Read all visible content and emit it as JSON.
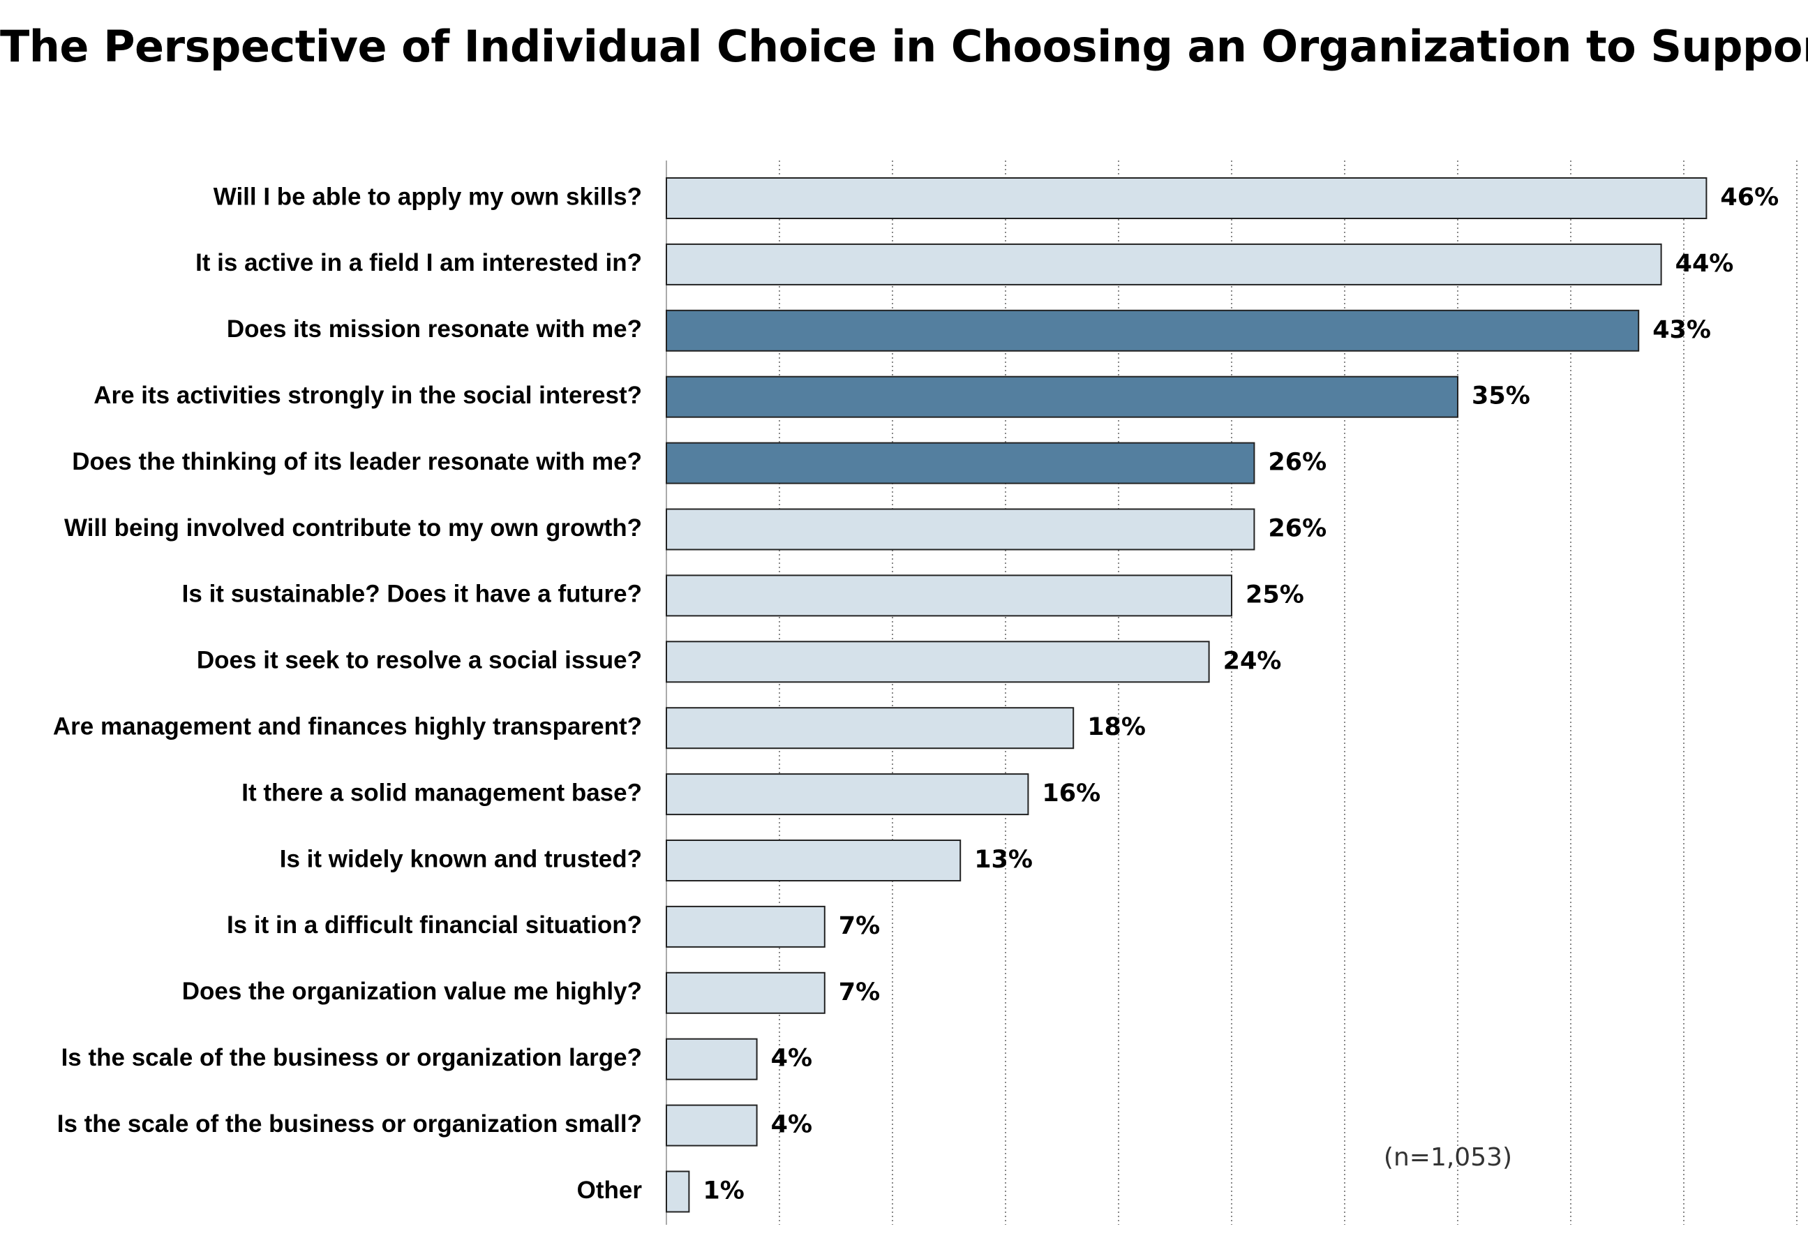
{
  "chart_data": {
    "type": "bar",
    "orientation": "horizontal",
    "title": "The Perspective of Individual Choice in Choosing an Organization to Support",
    "categories": [
      "Will I be able to apply my own skills?",
      "It is active in a field I am interested in?",
      "Does its mission resonate with me?",
      "Are its activities strongly in the social interest?",
      "Does the thinking of its leader resonate with me?",
      "Will being involved contribute to my own growth?",
      "Is it sustainable? Does it have a future?",
      "Does it seek to resolve a social issue?",
      "Are management and finances highly transparent?",
      "It there a solid management base?",
      "Is it widely known and trusted?",
      "Is it in a difficult financial situation?",
      "Does the organization value me highly?",
      "Is the scale of the business or organization large?",
      "Is the scale of the business or organization small?",
      "Other"
    ],
    "values": [
      46,
      44,
      43,
      35,
      26,
      26,
      25,
      24,
      18,
      16,
      13,
      7,
      7,
      4,
      4,
      1
    ],
    "value_labels": [
      "46%",
      "44%",
      "43%",
      "35%",
      "26%",
      "26%",
      "25%",
      "24%",
      "18%",
      "16%",
      "13%",
      "7%",
      "7%",
      "4%",
      "4%",
      "1%"
    ],
    "highlighted": [
      false,
      false,
      true,
      true,
      true,
      false,
      false,
      false,
      false,
      false,
      false,
      false,
      false,
      false,
      false,
      false
    ],
    "xlim": [
      0,
      50
    ],
    "grid": "vertical dotted",
    "colors": {
      "default_bar": "#d5e1ea",
      "highlight_bar": "#547f9f",
      "bar_border": "#222222",
      "grid": "#888888"
    },
    "annotation": "(n=1,053)"
  }
}
